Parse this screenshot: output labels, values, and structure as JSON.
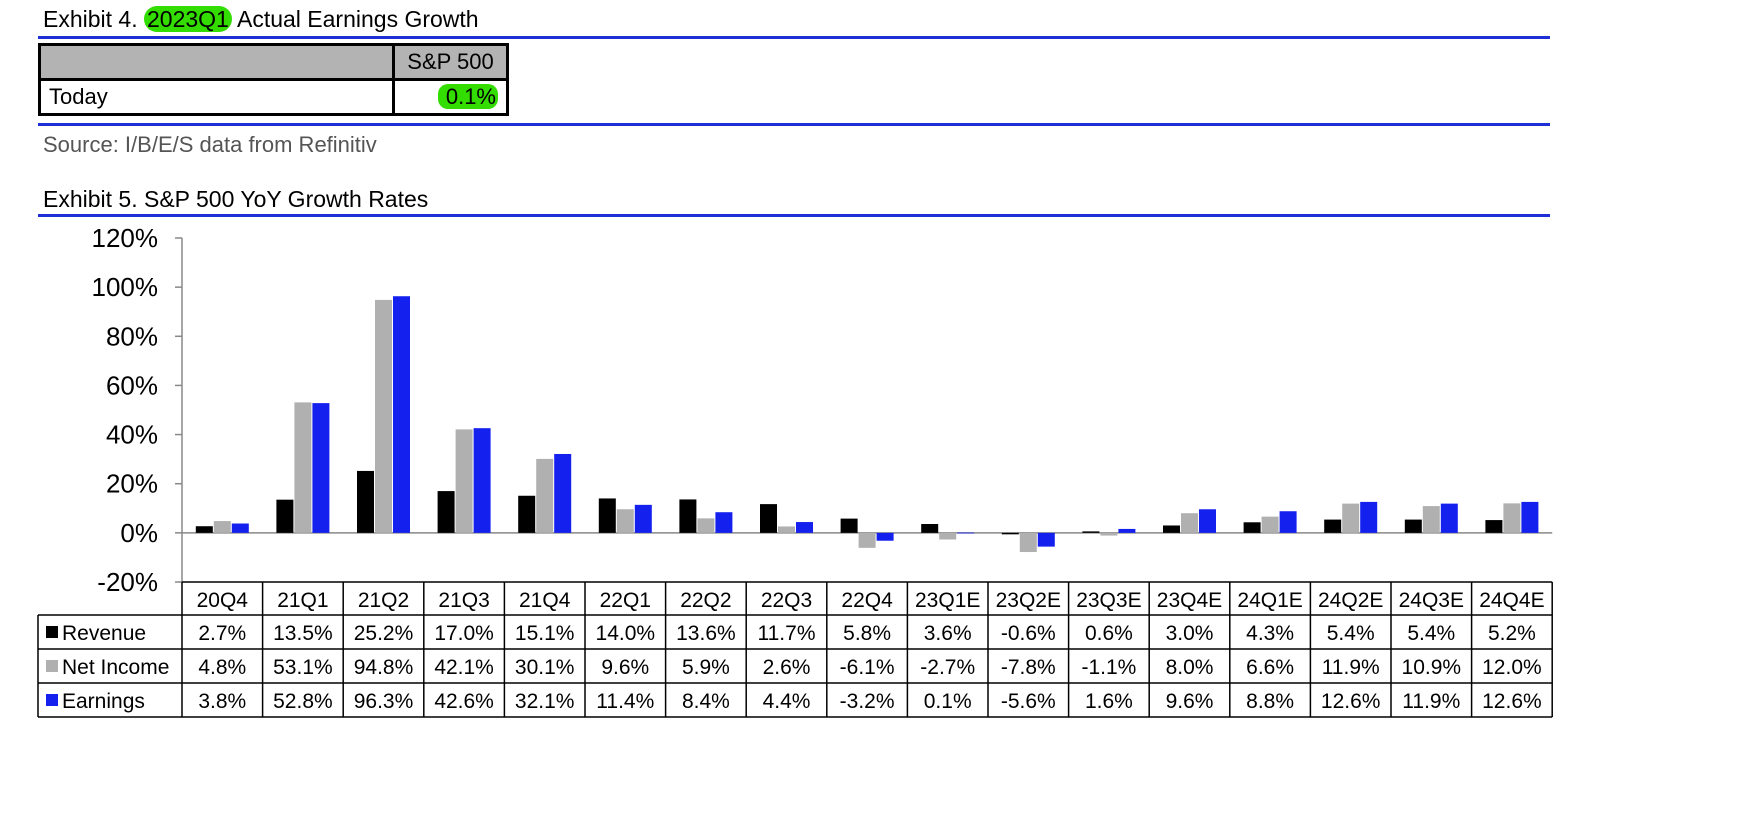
{
  "exhibit4": {
    "prefix": "Exhibit 4. ",
    "highlight": "2023Q1",
    "suffix": " Actual Earnings Growth",
    "table": {
      "header": "S&P 500",
      "row_label": "Today",
      "row_value": "0.1%"
    },
    "source": "Source: I/B/E/S data from Refinitiv"
  },
  "exhibit5": {
    "title": "Exhibit 5.  S&P 500 YoY Growth Rates"
  },
  "colors": {
    "revenue": "#000000",
    "net_income": "#b0b0b0",
    "earnings": "#1320ee",
    "rule": "#1f2fd6",
    "highlight": "#33dd00"
  },
  "chart_data": {
    "type": "bar",
    "title": "",
    "xlabel": "",
    "ylabel": "",
    "ylim": [
      -20,
      120
    ],
    "yticks": [
      "-20%",
      "0%",
      "20%",
      "40%",
      "60%",
      "80%",
      "100%",
      "120%"
    ],
    "categories": [
      "20Q4",
      "21Q1",
      "21Q2",
      "21Q3",
      "21Q4",
      "22Q1",
      "22Q2",
      "22Q3",
      "22Q4",
      "23Q1E",
      "23Q2E",
      "23Q3E",
      "23Q4E",
      "24Q1E",
      "24Q2E",
      "24Q3E",
      "24Q4E"
    ],
    "series": [
      {
        "name": "Revenue",
        "color": "#000000",
        "values": [
          2.7,
          13.5,
          25.2,
          17.0,
          15.1,
          14.0,
          13.6,
          11.7,
          5.8,
          3.6,
          -0.6,
          0.6,
          3.0,
          4.3,
          5.4,
          5.4,
          5.2
        ],
        "labels": [
          "2.7%",
          "13.5%",
          "25.2%",
          "17.0%",
          "15.1%",
          "14.0%",
          "13.6%",
          "11.7%",
          "5.8%",
          "3.6%",
          "-0.6%",
          "0.6%",
          "3.0%",
          "4.3%",
          "5.4%",
          "5.4%",
          "5.2%"
        ]
      },
      {
        "name": "Net Income",
        "color": "#b0b0b0",
        "values": [
          4.8,
          53.1,
          94.8,
          42.1,
          30.1,
          9.6,
          5.9,
          2.6,
          -6.1,
          -2.7,
          -7.8,
          -1.1,
          8.0,
          6.6,
          11.9,
          10.9,
          12.0
        ],
        "labels": [
          "4.8%",
          "53.1%",
          "94.8%",
          "42.1%",
          "30.1%",
          "9.6%",
          "5.9%",
          "2.6%",
          "-6.1%",
          "-2.7%",
          "-7.8%",
          "-1.1%",
          "8.0%",
          "6.6%",
          "11.9%",
          "10.9%",
          "12.0%"
        ]
      },
      {
        "name": "Earnings",
        "color": "#1320ee",
        "values": [
          3.8,
          52.8,
          96.3,
          42.6,
          32.1,
          11.4,
          8.4,
          4.4,
          -3.2,
          0.1,
          -5.6,
          1.6,
          9.6,
          8.8,
          12.6,
          11.9,
          12.6
        ],
        "labels": [
          "3.8%",
          "52.8%",
          "96.3%",
          "42.6%",
          "32.1%",
          "11.4%",
          "8.4%",
          "4.4%",
          "-3.2%",
          "0.1%",
          "-5.6%",
          "1.6%",
          "9.6%",
          "8.8%",
          "12.6%",
          "11.9%",
          "12.6%"
        ]
      }
    ],
    "legend": "data-table-below"
  }
}
